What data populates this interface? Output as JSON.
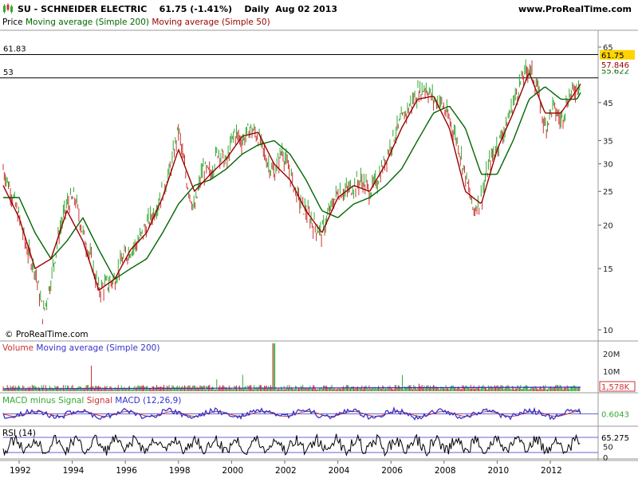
{
  "header": {
    "title": "SU - SCHNEIDER ELECTRIC    61.75 (-1.41%)    Daily  Aug 02 2013",
    "source": "www.ProRealTime.com"
  },
  "price_panel": {
    "legend_price": "Price",
    "legend_ma200": "Moving average (Simple 200)",
    "legend_ma50": "Moving average (Simple 50)",
    "copyright": "© ProRealTime.com",
    "hline_labels": [
      "61.83",
      "53"
    ],
    "last_price": "61.75",
    "ma50_value": "57.846",
    "ma200_value": "55.622",
    "colors": {
      "up": "#33aa33",
      "down": "#cc3333",
      "ma200": "#006600",
      "ma50": "#990000",
      "badge_price": "#ffd400"
    }
  },
  "volume_panel": {
    "legend_volume": "Volume",
    "legend_ma": "Moving average (Simple 200)",
    "last_value": "1,578K",
    "y_ticks": [
      "20M",
      "10M"
    ]
  },
  "macd_panel": {
    "legend_hist": "MACD minus Signal",
    "legend_signal": "Signal",
    "legend_macd": "MACD (12,26,9)",
    "last_value": "0.6043"
  },
  "rsi_panel": {
    "legend": "RSI (14)",
    "last_value": "65.275",
    "y_ticks": [
      "50",
      "0"
    ]
  },
  "chart_data": {
    "type": "line",
    "title": "SU - SCHNEIDER ELECTRIC",
    "scale": "log",
    "ylim": [
      10,
      70
    ],
    "y_ticks": [
      10,
      15,
      20,
      25,
      30,
      35,
      45,
      65
    ],
    "x_ticks": [
      "1992",
      "1994",
      "1996",
      "1998",
      "2000",
      "2002",
      "2004",
      "2006",
      "2008",
      "2010",
      "2012"
    ],
    "xlim": [
      1991.4,
      2013.8
    ],
    "horizontal_lines": [
      61.83,
      53
    ],
    "series": [
      {
        "name": "Price",
        "x": [
          1991.4,
          1991.7,
          1992.0,
          1992.3,
          1992.6,
          1992.9,
          1993.2,
          1993.5,
          1993.8,
          1994.1,
          1994.4,
          1994.7,
          1995.0,
          1995.3,
          1995.6,
          1995.9,
          1996.2,
          1996.5,
          1996.8,
          1997.1,
          1997.4,
          1997.7,
          1998.0,
          1998.3,
          1998.6,
          1998.9,
          1999.2,
          1999.5,
          1999.8,
          2000.1,
          2000.4,
          2000.7,
          2001.0,
          2001.3,
          2001.6,
          2001.9,
          2002.2,
          2002.5,
          2002.8,
          2003.1,
          2003.4,
          2003.7,
          2004.0,
          2004.3,
          2004.6,
          2004.9,
          2005.2,
          2005.5,
          2005.8,
          2006.1,
          2006.4,
          2006.7,
          2007.0,
          2007.3,
          2007.6,
          2007.9,
          2008.2,
          2008.5,
          2008.8,
          2009.1,
          2009.4,
          2009.7,
          2010.0,
          2010.3,
          2010.6,
          2010.9,
          2011.2,
          2011.5,
          2011.8,
          2012.1,
          2012.4,
          2012.7,
          2013.0,
          2013.3,
          2013.6
        ],
        "values": [
          29,
          25,
          21,
          17,
          15,
          11,
          14,
          19,
          23,
          24,
          19,
          16,
          13,
          13.5,
          14,
          16,
          17,
          18,
          20,
          22,
          25,
          29,
          38,
          27,
          22,
          29,
          28,
          33,
          30,
          37,
          35,
          38,
          36,
          31,
          28,
          33,
          28,
          24,
          22,
          20,
          19,
          22,
          25,
          25,
          26,
          27,
          25,
          27,
          31,
          36,
          40,
          44,
          48,
          50,
          46,
          45,
          40,
          35,
          28,
          22,
          24,
          30,
          34,
          38,
          45,
          52,
          57,
          50,
          38,
          44,
          40,
          47,
          50,
          56,
          61.75
        ]
      },
      {
        "name": "Moving average (Simple 200)",
        "x": [
          1991.4,
          1992.0,
          1992.6,
          1993.2,
          1993.8,
          1994.4,
          1995.0,
          1995.6,
          1996.2,
          1996.8,
          1997.4,
          1998.0,
          1998.6,
          1999.2,
          1999.8,
          2000.4,
          2001.0,
          2001.6,
          2002.2,
          2002.8,
          2003.4,
          2004.0,
          2004.6,
          2005.2,
          2005.8,
          2006.4,
          2007.0,
          2007.6,
          2008.2,
          2008.8,
          2009.4,
          2010.0,
          2010.6,
          2011.2,
          2011.8,
          2012.4,
          2013.0,
          2013.6
        ],
        "values": [
          24,
          24,
          19,
          16,
          18,
          21,
          17,
          14,
          15,
          16,
          19,
          23,
          26,
          27,
          29,
          32,
          34,
          35,
          32,
          27,
          22,
          21,
          23,
          24,
          26,
          29,
          35,
          42,
          44,
          38,
          28,
          28,
          35,
          46,
          50,
          46,
          46,
          55.622
        ]
      },
      {
        "name": "Moving average (Simple 50)",
        "x": [
          1991.4,
          1992.0,
          1992.6,
          1993.2,
          1993.8,
          1994.4,
          1995.0,
          1995.6,
          1996.2,
          1996.8,
          1997.4,
          1998.0,
          1998.6,
          1999.2,
          1999.8,
          2000.4,
          2001.0,
          2001.6,
          2002.2,
          2002.8,
          2003.4,
          2004.0,
          2004.6,
          2005.2,
          2005.8,
          2006.4,
          2007.0,
          2007.6,
          2008.2,
          2008.8,
          2009.4,
          2010.0,
          2010.6,
          2011.2,
          2011.8,
          2012.4,
          2013.0,
          2013.6
        ],
        "values": [
          26,
          21,
          15,
          16,
          22,
          18,
          13,
          14,
          17,
          19,
          24,
          33,
          25,
          28,
          31,
          36,
          37,
          30,
          27,
          22,
          19,
          24,
          26,
          25,
          30,
          38,
          46,
          47,
          38,
          25,
          23,
          33,
          42,
          55,
          42,
          42,
          49,
          57.846
        ]
      }
    ]
  }
}
